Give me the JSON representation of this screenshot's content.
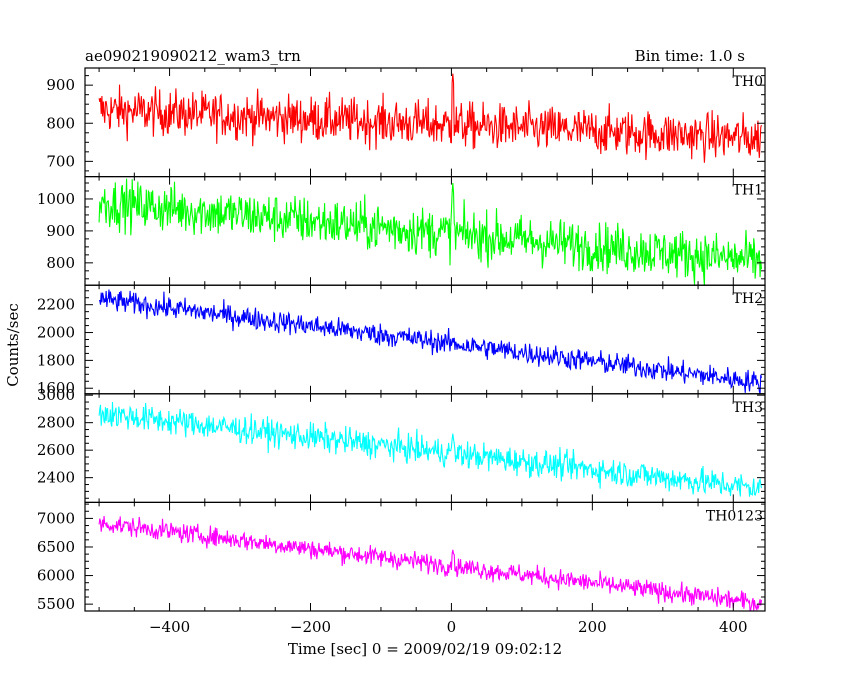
{
  "title": "ae090219090212_wam3_trn",
  "bin_time": "Bin time: 1.0 s",
  "xlabel": "Time [sec] 0 = 2009/02/19 09:02:12",
  "ylabel": "Counts/sec",
  "chart_data": {
    "type": "line",
    "xlim": [
      -520,
      445
    ],
    "x_ticks": [
      -400,
      -200,
      0,
      200,
      400
    ],
    "x_tick_labels": [
      "−400",
      "−200",
      "0",
      "200",
      "400"
    ],
    "data_range": [
      -500,
      440
    ],
    "grid": false,
    "panels": [
      {
        "name": "TH0",
        "color": "#ff0000",
        "ylim": [
          660,
          945
        ],
        "y_ticks": [
          700,
          800,
          900
        ],
        "trend_start": 835,
        "trend_end": 760,
        "noise": 30,
        "spike_at_0": 930,
        "samples": [
          [
            -500,
            840
          ],
          [
            -400,
            830
          ],
          [
            -300,
            815
          ],
          [
            -200,
            808
          ],
          [
            -100,
            800
          ],
          [
            0,
            795
          ],
          [
            100,
            785
          ],
          [
            200,
            775
          ],
          [
            300,
            768
          ],
          [
            440,
            762
          ]
        ]
      },
      {
        "name": "TH1",
        "color": "#00ff00",
        "ylim": [
          730,
          1070
        ],
        "y_ticks": [
          800,
          900,
          1000
        ],
        "trend_start": 990,
        "trend_end": 805,
        "noise": 38,
        "spike_at_0": 1050,
        "samples": [
          [
            -500,
            990
          ],
          [
            -400,
            965
          ],
          [
            -300,
            940
          ],
          [
            -200,
            910
          ],
          [
            -100,
            885
          ],
          [
            0,
            870
          ],
          [
            100,
            850
          ],
          [
            200,
            830
          ],
          [
            300,
            818
          ],
          [
            440,
            805
          ]
        ]
      },
      {
        "name": "TH2",
        "color": "#0000ff",
        "ylim": [
          1560,
          2340
        ],
        "y_ticks": [
          1600,
          1800,
          2000,
          2200
        ],
        "trend_start": 2240,
        "trend_end": 1640,
        "noise": 40,
        "spike_at_0": 1960,
        "samples": [
          [
            -500,
            2240
          ],
          [
            -400,
            2170
          ],
          [
            -300,
            2100
          ],
          [
            -200,
            2030
          ],
          [
            -100,
            1960
          ],
          [
            0,
            1880
          ],
          [
            100,
            1810
          ],
          [
            200,
            1750
          ],
          [
            300,
            1690
          ],
          [
            440,
            1640
          ]
        ]
      },
      {
        "name": "TH3",
        "color": "#00ffff",
        "ylim": [
          2220,
          3010
        ],
        "y_ticks": [
          2400,
          2600,
          2800,
          3000
        ],
        "trend_start": 2870,
        "trend_end": 2320,
        "noise": 50,
        "spike_at_0": 2720,
        "samples": [
          [
            -500,
            2870
          ],
          [
            -400,
            2820
          ],
          [
            -300,
            2750
          ],
          [
            -200,
            2690
          ],
          [
            -100,
            2620
          ],
          [
            0,
            2570
          ],
          [
            100,
            2510
          ],
          [
            200,
            2450
          ],
          [
            300,
            2390
          ],
          [
            440,
            2320
          ]
        ]
      },
      {
        "name": "TH0123",
        "color": "#ff00ff",
        "ylim": [
          5380,
          7280
        ],
        "y_ticks": [
          5500,
          6000,
          6500,
          7000
        ],
        "trend_start": 6920,
        "trend_end": 5510,
        "noise": 85,
        "spike_at_0": 6450,
        "samples": [
          [
            -500,
            6920
          ],
          [
            -400,
            6780
          ],
          [
            -300,
            6600
          ],
          [
            -200,
            6420
          ],
          [
            -100,
            6280
          ],
          [
            0,
            6100
          ],
          [
            100,
            5950
          ],
          [
            200,
            5800
          ],
          [
            300,
            5660
          ],
          [
            440,
            5510
          ]
        ]
      }
    ]
  }
}
